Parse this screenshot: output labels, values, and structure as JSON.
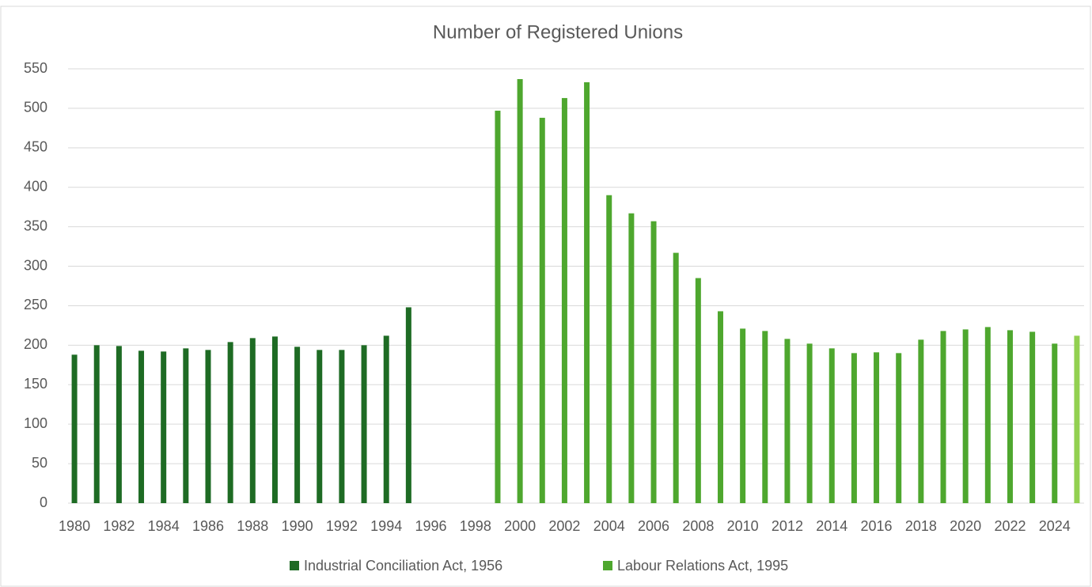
{
  "chart_data": {
    "type": "bar",
    "title": "Number of Registered Unions",
    "categories": [
      "1980",
      null,
      "1982",
      null,
      "1984",
      null,
      "1986",
      null,
      "1988",
      null,
      "1990",
      null,
      "1992",
      null,
      "1994",
      null,
      "1996",
      null,
      "1998",
      null,
      "2000",
      null,
      "2002",
      null,
      "2004",
      null,
      "2006",
      null,
      "2008",
      null,
      "2010",
      null,
      "2012",
      null,
      "2014",
      null,
      "2016",
      null,
      "2018",
      null,
      "2020",
      null,
      "2022",
      null,
      "2024",
      null
    ],
    "series": [
      {
        "name": "Industrial Conciliation Act, 1956",
        "color": "#1e6b24",
        "values": [
          188,
          200,
          199,
          193,
          192,
          196,
          194,
          204,
          209,
          211,
          198,
          194,
          194,
          200,
          212,
          248,
          null,
          null,
          null,
          null,
          null,
          null,
          null,
          null,
          null,
          null,
          null,
          null,
          null,
          null,
          null,
          null,
          null,
          null,
          null,
          null,
          null,
          null,
          null,
          null,
          null,
          null,
          null,
          null,
          null,
          null
        ]
      },
      {
        "name": "Labour Relations Act, 1995",
        "color": "#4ea72e",
        "last_color": "#92d050",
        "values": [
          null,
          null,
          null,
          null,
          null,
          null,
          null,
          null,
          null,
          null,
          null,
          null,
          null,
          null,
          null,
          null,
          null,
          null,
          null,
          497,
          537,
          488,
          513,
          533,
          390,
          367,
          357,
          317,
          285,
          243,
          221,
          218,
          208,
          202,
          196,
          190,
          191,
          190,
          207,
          218,
          220,
          223,
          219,
          217,
          202,
          212
        ]
      }
    ],
    "ylim": [
      0,
      550
    ],
    "yticks": [
      0,
      50,
      100,
      150,
      200,
      250,
      300,
      350,
      400,
      450,
      500,
      550
    ],
    "grid": true,
    "legend": "bottom"
  }
}
